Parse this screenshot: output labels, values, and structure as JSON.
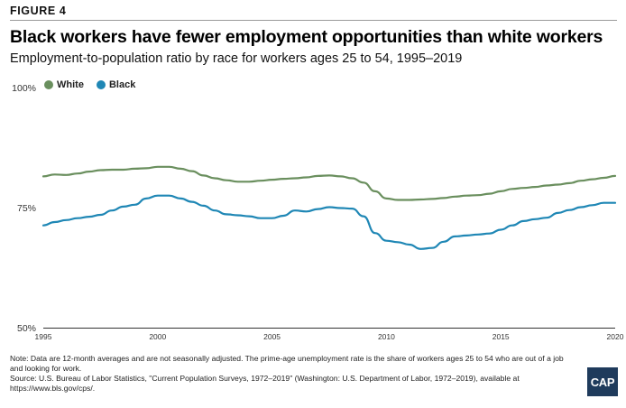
{
  "figure_label": "FIGURE 4",
  "chart_data": {
    "type": "line",
    "title": "Black workers have fewer employment opportunities than white workers",
    "subtitle": "Employment-to-population ratio by race for workers ages 25 to 54, 1995–2019",
    "xlabel": "",
    "ylabel": "",
    "xlim": [
      1995,
      2020
    ],
    "ylim": [
      50,
      100
    ],
    "x_ticks": [
      1995,
      2000,
      2005,
      2010,
      2015,
      2020
    ],
    "x_tick_labels": [
      "1995",
      "2000",
      "2005",
      "2010",
      "2015",
      "2020"
    ],
    "y_ticks": [
      50,
      75,
      100
    ],
    "y_tick_labels": [
      "50%",
      "75%",
      "100%"
    ],
    "grid": false,
    "legend_position": "top-left",
    "series": [
      {
        "name": "White",
        "color": "#6a8f5e",
        "x": [
          1995.0,
          1995.5,
          1996.0,
          1996.5,
          1997.0,
          1997.5,
          1998.0,
          1998.5,
          1999.0,
          1999.5,
          2000.0,
          2000.5,
          2001.0,
          2001.5,
          2002.0,
          2002.5,
          2003.0,
          2003.5,
          2004.0,
          2004.5,
          2005.0,
          2005.5,
          2006.0,
          2006.5,
          2007.0,
          2007.5,
          2008.0,
          2008.5,
          2009.0,
          2009.5,
          2010.0,
          2010.5,
          2011.0,
          2011.5,
          2012.0,
          2012.5,
          2013.0,
          2013.5,
          2014.0,
          2014.5,
          2015.0,
          2015.5,
          2016.0,
          2016.5,
          2017.0,
          2017.5,
          2018.0,
          2018.5,
          2019.0,
          2019.5,
          2020.0
        ],
        "values": [
          81.5,
          81.9,
          81.8,
          82.1,
          82.5,
          82.8,
          82.9,
          82.9,
          83.1,
          83.2,
          83.5,
          83.5,
          83.1,
          82.6,
          81.7,
          81.1,
          80.7,
          80.4,
          80.4,
          80.6,
          80.8,
          81.0,
          81.1,
          81.3,
          81.6,
          81.7,
          81.5,
          81.1,
          80.2,
          78.4,
          76.9,
          76.6,
          76.6,
          76.7,
          76.8,
          77.0,
          77.3,
          77.5,
          77.6,
          77.9,
          78.4,
          78.9,
          79.1,
          79.3,
          79.6,
          79.8,
          80.1,
          80.6,
          80.9,
          81.2,
          81.6
        ]
      },
      {
        "name": "Black",
        "color": "#1f87b5",
        "x": [
          1995.0,
          1995.5,
          1996.0,
          1996.5,
          1997.0,
          1997.5,
          1998.0,
          1998.5,
          1999.0,
          1999.5,
          2000.0,
          2000.5,
          2001.0,
          2001.5,
          2002.0,
          2002.5,
          2003.0,
          2003.5,
          2004.0,
          2004.5,
          2005.0,
          2005.5,
          2006.0,
          2006.5,
          2007.0,
          2007.5,
          2008.0,
          2008.5,
          2009.0,
          2009.5,
          2010.0,
          2010.5,
          2011.0,
          2011.5,
          2012.0,
          2012.5,
          2013.0,
          2013.5,
          2014.0,
          2014.5,
          2015.0,
          2015.5,
          2016.0,
          2016.5,
          2017.0,
          2017.5,
          2018.0,
          2018.5,
          2019.0,
          2019.5,
          2020.0
        ],
        "values": [
          71.3,
          72.0,
          72.4,
          72.8,
          73.1,
          73.5,
          74.4,
          75.2,
          75.6,
          76.9,
          77.5,
          77.5,
          76.9,
          76.2,
          75.4,
          74.4,
          73.6,
          73.4,
          73.2,
          72.8,
          72.8,
          73.3,
          74.4,
          74.2,
          74.7,
          75.1,
          74.9,
          74.8,
          73.2,
          69.7,
          68.1,
          67.8,
          67.3,
          66.4,
          66.6,
          67.9,
          69.0,
          69.2,
          69.4,
          69.6,
          70.4,
          71.3,
          72.2,
          72.6,
          72.9,
          73.9,
          74.5,
          75.1,
          75.5,
          76.0,
          76.0
        ]
      }
    ]
  },
  "notes": {
    "line1": "Note: Data are 12-month averages and are not seasonally adjusted. The prime-age unemployment rate is the share of workers ages 25 to 54 who are out of a job and looking for work.",
    "line2": "Source: U.S. Bureau of Labor Statistics, \"Current Population Surveys, 1972–2019\" (Washington: U.S. Department of Labor, 1972–2019), available at https://www.bls.gov/cps/."
  },
  "logo_text": "CAP"
}
